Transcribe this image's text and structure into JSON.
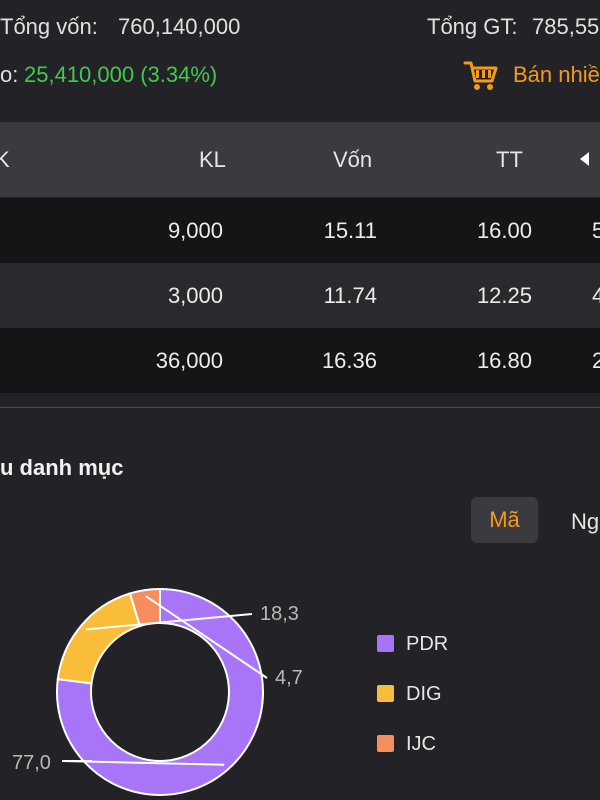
{
  "summary": {
    "total_capital_label": "Tổng vốn:",
    "total_capital_value": "760,140,000",
    "total_value_label": "Tổng GT:",
    "total_value_value": "785,55",
    "profit_prefix": "o:",
    "profit_value": "25,410,000 (3.34%)",
    "sell_button_label": "Bán nhiề"
  },
  "table": {
    "headers": {
      "c0": "K",
      "kl": "KL",
      "von": "Vốn",
      "tt": "TT"
    },
    "rows": [
      {
        "kl": "9,000",
        "von": "15.11",
        "tt": "16.00",
        "extra": "5"
      },
      {
        "kl": "3,000",
        "von": "11.74",
        "tt": "12.25",
        "extra": "4"
      },
      {
        "kl": "36,000",
        "von": "16.36",
        "tt": "16.80",
        "extra": "2"
      }
    ]
  },
  "portfolio": {
    "title": "u danh mục",
    "tabs": {
      "active": "Mã",
      "other": "Ng"
    }
  },
  "chart_data": {
    "type": "pie",
    "style": "donut",
    "categories": [
      "PDR",
      "DIG",
      "IJC"
    ],
    "values": [
      77.0,
      18.3,
      4.7
    ],
    "value_labels": [
      "77,0",
      "18,3",
      "4,7"
    ],
    "colors": [
      "#a874f8",
      "#f9bd3a",
      "#f78c5f"
    ],
    "legend_position": "right"
  },
  "colors": {
    "background": "#232327",
    "positive": "#3fca4e",
    "accent": "#f39a1c"
  },
  "icons": {
    "cart": "shopping-cart-icon",
    "arrow": "triangle-left-icon"
  }
}
